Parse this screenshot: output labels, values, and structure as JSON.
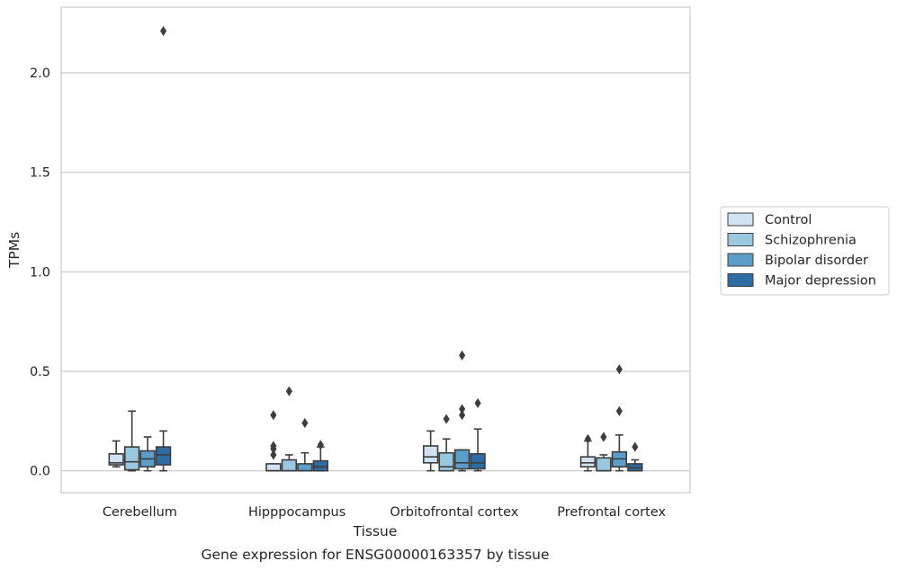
{
  "chart_data": {
    "type": "box",
    "title": "",
    "caption": "Gene expression for ENSG00000163357 by tissue",
    "xlabel": "Tissue",
    "ylabel": "TPMs",
    "ylim": [
      -0.11,
      2.33
    ],
    "yticks": [
      0.0,
      0.5,
      1.0,
      1.5,
      2.0
    ],
    "ytick_labels": [
      "0.0",
      "0.5",
      "1.0",
      "1.5",
      "2.0"
    ],
    "grid": "horizontal",
    "legend_position": "right",
    "categories": [
      "Cerebellum",
      "Hipppocampus",
      "Orbitofrontal cortex",
      "Prefrontal cortex"
    ],
    "series": [
      {
        "name": "Control",
        "color": "#d1e2f2",
        "boxes": [
          {
            "whisker_low": 0.02,
            "q1": 0.03,
            "median": 0.04,
            "q3": 0.085,
            "whisker_high": 0.15,
            "outliers": []
          },
          {
            "whisker_low": 0.0,
            "q1": 0.0,
            "median": 0.0,
            "q3": 0.035,
            "whisker_high": 0.035,
            "outliers": [
              0.08,
              0.11,
              0.125,
              0.28
            ]
          },
          {
            "whisker_low": 0.0,
            "q1": 0.04,
            "median": 0.07,
            "q3": 0.125,
            "whisker_high": 0.2,
            "outliers": []
          },
          {
            "whisker_low": 0.0,
            "q1": 0.02,
            "median": 0.04,
            "q3": 0.07,
            "whisker_high": 0.15,
            "outliers": [
              0.16
            ]
          }
        ]
      },
      {
        "name": "Schizophrenia",
        "color": "#9ac8e0",
        "boxes": [
          {
            "whisker_low": 0.0,
            "q1": 0.005,
            "median": 0.045,
            "q3": 0.12,
            "whisker_high": 0.3,
            "outliers": []
          },
          {
            "whisker_low": 0.0,
            "q1": 0.0,
            "median": 0.0,
            "q3": 0.055,
            "whisker_high": 0.08,
            "outliers": [
              0.4
            ]
          },
          {
            "whisker_low": 0.0,
            "q1": 0.0,
            "median": 0.02,
            "q3": 0.09,
            "whisker_high": 0.16,
            "outliers": [
              0.26
            ]
          },
          {
            "whisker_low": 0.0,
            "q1": 0.0,
            "median": 0.0,
            "q3": 0.065,
            "whisker_high": 0.08,
            "outliers": [
              0.17
            ]
          }
        ]
      },
      {
        "name": "Bipolar disorder",
        "color": "#5a9ec9",
        "boxes": [
          {
            "whisker_low": 0.0,
            "q1": 0.02,
            "median": 0.06,
            "q3": 0.1,
            "whisker_high": 0.17,
            "outliers": []
          },
          {
            "whisker_low": 0.0,
            "q1": 0.0,
            "median": 0.0,
            "q3": 0.035,
            "whisker_high": 0.09,
            "outliers": [
              0.24
            ]
          },
          {
            "whisker_low": 0.0,
            "q1": 0.01,
            "median": 0.04,
            "q3": 0.105,
            "whisker_high": 0.105,
            "outliers": [
              0.28,
              0.31,
              0.58
            ]
          },
          {
            "whisker_low": 0.0,
            "q1": 0.02,
            "median": 0.06,
            "q3": 0.095,
            "whisker_high": 0.18,
            "outliers": [
              0.3,
              0.51
            ]
          }
        ]
      },
      {
        "name": "Major depression",
        "color": "#2e6da4",
        "boxes": [
          {
            "whisker_low": 0.0,
            "q1": 0.03,
            "median": 0.08,
            "q3": 0.12,
            "whisker_high": 0.2,
            "outliers": [
              2.21
            ]
          },
          {
            "whisker_low": 0.0,
            "q1": 0.0,
            "median": 0.02,
            "q3": 0.05,
            "whisker_high": 0.12,
            "outliers": [
              0.13
            ]
          },
          {
            "whisker_low": 0.0,
            "q1": 0.01,
            "median": 0.04,
            "q3": 0.085,
            "whisker_high": 0.21,
            "outliers": [
              0.34
            ]
          },
          {
            "whisker_low": 0.0,
            "q1": 0.0,
            "median": 0.015,
            "q3": 0.035,
            "whisker_high": 0.055,
            "outliers": [
              0.12
            ]
          }
        ]
      }
    ]
  }
}
